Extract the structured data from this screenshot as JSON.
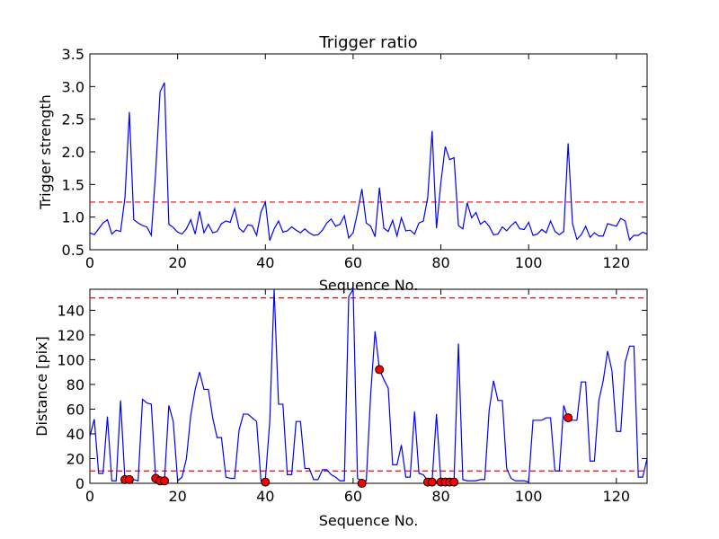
{
  "chart_data": [
    {
      "type": "line",
      "title": "Trigger ratio",
      "xlabel": "Sequence No.",
      "ylabel": "Trigger strength",
      "xlim": [
        0,
        127
      ],
      "ylim": [
        0.5,
        3.5
      ],
      "xticks": [
        0,
        20,
        40,
        60,
        80,
        100,
        120
      ],
      "xtick_labels": [
        "0",
        "20",
        "40",
        "60",
        "80",
        "100",
        "120"
      ],
      "yticks": [
        0.5,
        1.0,
        1.5,
        2.0,
        2.5,
        3.0,
        3.5
      ],
      "ytick_labels": [
        "0.5",
        "1.0",
        "1.5",
        "2.0",
        "2.5",
        "3.0",
        "3.5"
      ],
      "grid": false,
      "line_color": "#0000ff",
      "threshold_color": "#ff0000",
      "thresholds": [
        1.23
      ],
      "series": [
        {
          "x_start": 0,
          "values": [
            0.76,
            0.73,
            0.82,
            0.91,
            0.96,
            0.74,
            0.8,
            0.78,
            1.3,
            2.61,
            0.96,
            0.91,
            0.87,
            0.85,
            0.72,
            1.7,
            2.92,
            3.06,
            0.89,
            0.84,
            0.77,
            0.74,
            0.82,
            0.96,
            0.74,
            1.09,
            0.76,
            0.89,
            0.76,
            0.78,
            0.9,
            0.94,
            0.92,
            1.13,
            0.83,
            0.77,
            0.88,
            0.87,
            0.72,
            1.08,
            1.23,
            0.64,
            0.82,
            0.94,
            0.77,
            0.79,
            0.85,
            0.8,
            0.76,
            0.82,
            0.76,
            0.72,
            0.73,
            0.8,
            0.91,
            0.97,
            0.86,
            0.89,
            1.02,
            0.68,
            0.76,
            1.07,
            1.43,
            0.91,
            0.86,
            0.7,
            1.45,
            0.83,
            0.78,
            0.95,
            0.71,
            0.99,
            0.79,
            0.8,
            0.74,
            0.91,
            0.94,
            1.3,
            2.32,
            0.83,
            1.53,
            2.08,
            1.88,
            1.91,
            0.87,
            0.82,
            1.22,
            0.99,
            1.07,
            0.89,
            0.94,
            0.86,
            0.73,
            0.74,
            0.85,
            0.79,
            0.87,
            0.93,
            0.82,
            0.81,
            0.92,
            0.72,
            0.74,
            0.81,
            0.76,
            0.94,
            0.78,
            0.73,
            0.78,
            2.13,
            0.9,
            0.66,
            0.73,
            0.86,
            0.69,
            0.76,
            0.71,
            0.71,
            0.9,
            0.88,
            0.86,
            0.98,
            0.94,
            0.65,
            0.72,
            0.72,
            0.77,
            0.74
          ]
        }
      ]
    },
    {
      "type": "line",
      "title": "",
      "xlabel": "Sequence No.",
      "ylabel": "Distance [pix]",
      "xlim": [
        0,
        127
      ],
      "ylim": [
        0,
        157
      ],
      "xticks": [
        0,
        20,
        40,
        60,
        80,
        100,
        120
      ],
      "xtick_labels": [
        "0",
        "20",
        "40",
        "60",
        "80",
        "100",
        "120"
      ],
      "yticks": [
        0,
        20,
        40,
        60,
        80,
        100,
        120,
        140
      ],
      "ytick_labels": [
        "0",
        "20",
        "40",
        "60",
        "80",
        "100",
        "120",
        "140"
      ],
      "grid": false,
      "line_color": "#0000ff",
      "threshold_color": "#ff0000",
      "marker_color": "#ff0000",
      "thresholds": [
        10,
        150
      ],
      "series": [
        {
          "x_start": 0,
          "values": [
            38,
            52,
            8,
            8,
            54,
            2,
            2,
            67,
            2,
            3,
            3,
            2,
            68,
            65,
            64,
            4,
            2,
            2,
            63,
            50,
            2,
            5,
            20,
            55,
            76,
            90,
            76,
            76,
            53,
            37,
            37,
            5,
            4,
            4,
            43,
            56,
            56,
            53,
            50,
            2,
            3,
            50,
            157,
            64,
            64,
            7,
            7,
            50,
            50,
            12,
            12,
            3,
            3,
            11,
            11,
            7,
            5,
            2,
            2,
            151,
            157,
            4,
            2,
            2,
            72,
            123,
            92,
            84,
            77,
            15,
            15,
            31,
            5,
            5,
            58,
            8,
            7,
            2,
            2,
            56,
            2,
            2,
            2,
            2,
            113,
            3,
            2,
            2,
            2,
            3,
            3,
            59,
            83,
            67,
            67,
            12,
            4,
            2,
            2,
            2,
            1,
            51,
            51,
            51,
            53,
            53,
            10,
            10,
            63,
            52,
            51,
            51,
            82,
            82,
            18,
            18,
            67,
            83,
            107,
            91,
            42,
            42,
            98,
            111,
            111,
            5,
            5,
            20
          ]
        }
      ],
      "markers": [
        {
          "x": 8,
          "y": 3
        },
        {
          "x": 9,
          "y": 3
        },
        {
          "x": 15,
          "y": 4
        },
        {
          "x": 16,
          "y": 2
        },
        {
          "x": 17,
          "y": 2
        },
        {
          "x": 40,
          "y": 1
        },
        {
          "x": 62,
          "y": 0
        },
        {
          "x": 66,
          "y": 92
        },
        {
          "x": 77,
          "y": 1
        },
        {
          "x": 78,
          "y": 1
        },
        {
          "x": 80,
          "y": 1
        },
        {
          "x": 81,
          "y": 1
        },
        {
          "x": 82,
          "y": 1
        },
        {
          "x": 83,
          "y": 1
        },
        {
          "x": 109,
          "y": 53
        }
      ]
    }
  ]
}
